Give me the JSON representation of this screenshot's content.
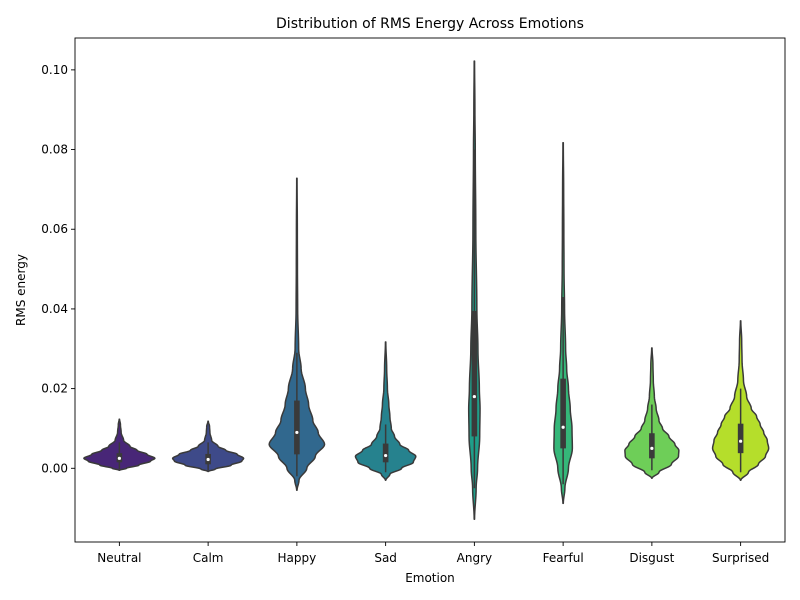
{
  "chart_data": {
    "type": "violin",
    "title": "Distribution of RMS Energy Across Emotions",
    "xlabel": "Emotion",
    "ylabel": "RMS energy",
    "ylim": [
      -0.0185,
      0.108
    ],
    "yticks": [
      0.0,
      0.02,
      0.04,
      0.06,
      0.08,
      0.1
    ],
    "ytick_labels": [
      "0.00",
      "0.02",
      "0.04",
      "0.06",
      "0.08",
      "0.10"
    ],
    "grid": false,
    "legend": "none",
    "categories": [
      "Neutral",
      "Calm",
      "Happy",
      "Sad",
      "Angry",
      "Fearful",
      "Disgust",
      "Surprised"
    ],
    "violins": [
      {
        "category": "Neutral",
        "color": "#482677",
        "min": -0.0005,
        "max": 0.0123,
        "q1": 0.0015,
        "median": 0.0025,
        "q3": 0.0038,
        "whisker_low": -0.0002,
        "whisker_high": 0.0065,
        "profile": [
          [
            -0.0005,
            0.005
          ],
          [
            0.0,
            0.2
          ],
          [
            0.0008,
            0.55
          ],
          [
            0.0018,
            0.88
          ],
          [
            0.0025,
            1.0
          ],
          [
            0.0035,
            0.78
          ],
          [
            0.0045,
            0.5
          ],
          [
            0.0055,
            0.3
          ],
          [
            0.007,
            0.12
          ],
          [
            0.009,
            0.05
          ],
          [
            0.011,
            0.03
          ],
          [
            0.0123,
            0.005
          ]
        ]
      },
      {
        "category": "Calm",
        "color": "#3e4a89",
        "min": -0.0008,
        "max": 0.0118,
        "q1": 0.001,
        "median": 0.0022,
        "q3": 0.0036,
        "whisker_low": -0.0005,
        "whisker_high": 0.0065,
        "profile": [
          [
            -0.0008,
            0.005
          ],
          [
            -0.0002,
            0.2
          ],
          [
            0.0008,
            0.65
          ],
          [
            0.0018,
            0.95
          ],
          [
            0.0025,
            1.0
          ],
          [
            0.0035,
            0.82
          ],
          [
            0.0045,
            0.5
          ],
          [
            0.0055,
            0.28
          ],
          [
            0.007,
            0.1
          ],
          [
            0.009,
            0.05
          ],
          [
            0.0105,
            0.04
          ],
          [
            0.0118,
            0.005
          ]
        ]
      },
      {
        "category": "Happy",
        "color": "#31688e",
        "min": -0.0055,
        "max": 0.0728,
        "q1": 0.0035,
        "median": 0.009,
        "q3": 0.017,
        "whisker_low": -0.002,
        "whisker_high": 0.029,
        "profile": [
          [
            -0.0055,
            0.005
          ],
          [
            -0.003,
            0.06
          ],
          [
            0.0,
            0.28
          ],
          [
            0.003,
            0.52
          ],
          [
            0.006,
            0.78
          ],
          [
            0.009,
            0.6
          ],
          [
            0.012,
            0.45
          ],
          [
            0.016,
            0.33
          ],
          [
            0.02,
            0.24
          ],
          [
            0.025,
            0.12
          ],
          [
            0.03,
            0.05
          ],
          [
            0.04,
            0.022
          ],
          [
            0.05,
            0.016
          ],
          [
            0.06,
            0.013
          ],
          [
            0.0728,
            0.005
          ]
        ]
      },
      {
        "category": "Sad",
        "color": "#26828e",
        "min": -0.003,
        "max": 0.0317,
        "q1": 0.0015,
        "median": 0.0032,
        "q3": 0.0062,
        "whisker_low": -0.001,
        "whisker_high": 0.011,
        "profile": [
          [
            -0.003,
            0.005
          ],
          [
            -0.0015,
            0.12
          ],
          [
            0.0,
            0.45
          ],
          [
            0.0015,
            0.78
          ],
          [
            0.003,
            0.85
          ],
          [
            0.0045,
            0.65
          ],
          [
            0.006,
            0.4
          ],
          [
            0.008,
            0.25
          ],
          [
            0.01,
            0.16
          ],
          [
            0.013,
            0.12
          ],
          [
            0.016,
            0.09
          ],
          [
            0.02,
            0.05
          ],
          [
            0.025,
            0.03
          ],
          [
            0.0317,
            0.005
          ]
        ]
      },
      {
        "category": "Angry",
        "color": "#1f9e89",
        "min": -0.0128,
        "max": 0.1022,
        "q1": 0.008,
        "median": 0.018,
        "q3": 0.0395,
        "whisker_low": -0.005,
        "whisker_high": 0.08,
        "profile": [
          [
            -0.0128,
            0.005
          ],
          [
            -0.005,
            0.05
          ],
          [
            0.0,
            0.09
          ],
          [
            0.008,
            0.15
          ],
          [
            0.015,
            0.16
          ],
          [
            0.02,
            0.14
          ],
          [
            0.03,
            0.1
          ],
          [
            0.04,
            0.07
          ],
          [
            0.06,
            0.04
          ],
          [
            0.08,
            0.025
          ],
          [
            0.09,
            0.015
          ],
          [
            0.1022,
            0.005
          ]
        ]
      },
      {
        "category": "Fearful",
        "color": "#35b779",
        "min": -0.0088,
        "max": 0.0817,
        "q1": 0.005,
        "median": 0.0103,
        "q3": 0.0225,
        "whisker_low": -0.004,
        "whisker_high": 0.043,
        "profile": [
          [
            -0.0088,
            0.005
          ],
          [
            -0.005,
            0.05
          ],
          [
            0.0,
            0.15
          ],
          [
            0.005,
            0.26
          ],
          [
            0.01,
            0.25
          ],
          [
            0.015,
            0.2
          ],
          [
            0.02,
            0.15
          ],
          [
            0.025,
            0.1
          ],
          [
            0.03,
            0.07
          ],
          [
            0.04,
            0.04
          ],
          [
            0.05,
            0.025
          ],
          [
            0.06,
            0.02
          ],
          [
            0.07,
            0.015
          ],
          [
            0.0817,
            0.005
          ]
        ]
      },
      {
        "category": "Disgust",
        "color": "#6ece58",
        "min": -0.0025,
        "max": 0.0302,
        "q1": 0.0025,
        "median": 0.005,
        "q3": 0.0088,
        "whisker_low": -0.0005,
        "whisker_high": 0.016,
        "profile": [
          [
            -0.0025,
            0.005
          ],
          [
            -0.001,
            0.2
          ],
          [
            0.001,
            0.55
          ],
          [
            0.003,
            0.75
          ],
          [
            0.0045,
            0.76
          ],
          [
            0.006,
            0.65
          ],
          [
            0.008,
            0.48
          ],
          [
            0.01,
            0.3
          ],
          [
            0.012,
            0.2
          ],
          [
            0.015,
            0.12
          ],
          [
            0.018,
            0.07
          ],
          [
            0.022,
            0.04
          ],
          [
            0.026,
            0.03
          ],
          [
            0.0302,
            0.005
          ]
        ]
      },
      {
        "category": "Surprised",
        "color": "#b5de2b",
        "min": -0.003,
        "max": 0.037,
        "q1": 0.0038,
        "median": 0.0068,
        "q3": 0.0112,
        "whisker_low": -0.001,
        "whisker_high": 0.02,
        "profile": [
          [
            -0.003,
            0.005
          ],
          [
            -0.001,
            0.22
          ],
          [
            0.001,
            0.5
          ],
          [
            0.003,
            0.7
          ],
          [
            0.005,
            0.79
          ],
          [
            0.007,
            0.75
          ],
          [
            0.009,
            0.65
          ],
          [
            0.011,
            0.55
          ],
          [
            0.013,
            0.45
          ],
          [
            0.015,
            0.3
          ],
          [
            0.018,
            0.17
          ],
          [
            0.022,
            0.08
          ],
          [
            0.027,
            0.04
          ],
          [
            0.032,
            0.03
          ],
          [
            0.037,
            0.005
          ]
        ]
      }
    ]
  }
}
